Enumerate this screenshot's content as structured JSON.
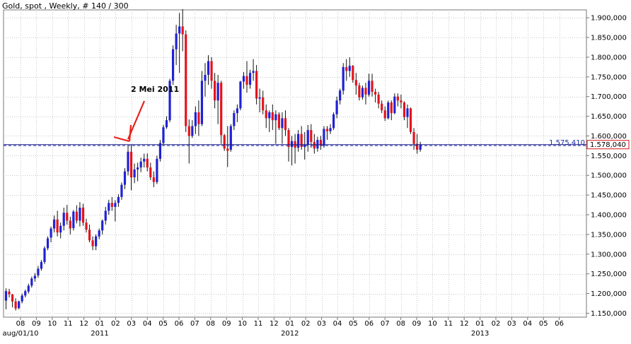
{
  "title": "Gold, spot , Weekly, # 140 / 300",
  "colors": {
    "up": "#1f22d6",
    "down": "#e3141c",
    "grid": "#c8c8c8",
    "ref_line": "#2030a0",
    "badge": "#d81010",
    "annot": "#e8201a",
    "blue_label": "#1a2ea8"
  },
  "chart_data": {
    "type": "candlestick",
    "ylim": [
      1140,
      1920
    ],
    "y_ticks": [
      "1.150,000",
      "1.200,000",
      "1.250,000",
      "1.300,000",
      "1.350,000",
      "1.400,000",
      "1.450,000",
      "1.500,000",
      "1.550,000",
      "1.600,000",
      "1.650,000",
      "1.700,000",
      "1.750,000",
      "1.800,000",
      "1.850,000",
      "1.900,000"
    ],
    "x_ticks": [
      "08",
      "09",
      "10",
      "11",
      "12",
      "01",
      "02",
      "03",
      "04",
      "05",
      "06",
      "07",
      "08",
      "09",
      "10",
      "11",
      "12",
      "01",
      "02",
      "03",
      "04",
      "05",
      "06",
      "07",
      "08",
      "09",
      "10",
      "11",
      "12",
      "01",
      "02",
      "03",
      "04",
      "05",
      "06"
    ],
    "year_labels": [
      {
        "text": "aug/01/10",
        "tick": 0
      },
      {
        "text": "2011",
        "tick": 5
      },
      {
        "text": "2012",
        "tick": 17
      },
      {
        "text": "2013",
        "tick": 29
      }
    ],
    "ref_line": {
      "value": 1575.41,
      "label": "1.575,410"
    },
    "last_price": {
      "value": 1578.04,
      "label": "1.578,040"
    },
    "annotation": {
      "text": "2 Mei 2011",
      "week": 38
    },
    "candles": [
      [
        1182,
        1213,
        1160,
        1206
      ],
      [
        1205,
        1212,
        1190,
        1198
      ],
      [
        1198,
        1199,
        1165,
        1180
      ],
      [
        1180,
        1188,
        1157,
        1162
      ],
      [
        1163,
        1182,
        1160,
        1180
      ],
      [
        1180,
        1200,
        1175,
        1195
      ],
      [
        1195,
        1210,
        1190,
        1206
      ],
      [
        1205,
        1225,
        1200,
        1220
      ],
      [
        1220,
        1243,
        1215,
        1238
      ],
      [
        1238,
        1252,
        1230,
        1245
      ],
      [
        1246,
        1270,
        1240,
        1263
      ],
      [
        1263,
        1285,
        1258,
        1280
      ],
      [
        1280,
        1320,
        1275,
        1315
      ],
      [
        1315,
        1345,
        1310,
        1340
      ],
      [
        1342,
        1370,
        1330,
        1365
      ],
      [
        1365,
        1398,
        1355,
        1388
      ],
      [
        1388,
        1410,
        1345,
        1355
      ],
      [
        1355,
        1380,
        1340,
        1372
      ],
      [
        1372,
        1418,
        1360,
        1405
      ],
      [
        1405,
        1425,
        1375,
        1385
      ],
      [
        1385,
        1395,
        1350,
        1365
      ],
      [
        1366,
        1412,
        1360,
        1408
      ],
      [
        1408,
        1424,
        1378,
        1385
      ],
      [
        1385,
        1432,
        1370,
        1418
      ],
      [
        1418,
        1428,
        1372,
        1380
      ],
      [
        1380,
        1390,
        1355,
        1362
      ],
      [
        1362,
        1375,
        1330,
        1335
      ],
      [
        1335,
        1345,
        1310,
        1320
      ],
      [
        1320,
        1350,
        1310,
        1345
      ],
      [
        1345,
        1365,
        1338,
        1360
      ],
      [
        1360,
        1388,
        1350,
        1385
      ],
      [
        1385,
        1420,
        1375,
        1410
      ],
      [
        1410,
        1438,
        1400,
        1430
      ],
      [
        1430,
        1445,
        1410,
        1420
      ],
      [
        1420,
        1437,
        1383,
        1430
      ],
      [
        1430,
        1452,
        1420,
        1445
      ],
      [
        1445,
        1482,
        1438,
        1476
      ],
      [
        1476,
        1518,
        1465,
        1510
      ],
      [
        1510,
        1575,
        1500,
        1560
      ],
      [
        1560,
        1578,
        1462,
        1495
      ],
      [
        1495,
        1530,
        1480,
        1515
      ],
      [
        1515,
        1532,
        1485,
        1520
      ],
      [
        1520,
        1545,
        1508,
        1535
      ],
      [
        1535,
        1555,
        1520,
        1542
      ],
      [
        1542,
        1556,
        1510,
        1520
      ],
      [
        1520,
        1532,
        1488,
        1495
      ],
      [
        1495,
        1510,
        1470,
        1483
      ],
      [
        1483,
        1550,
        1478,
        1542
      ],
      [
        1542,
        1590,
        1535,
        1582
      ],
      [
        1582,
        1628,
        1578,
        1622
      ],
      [
        1622,
        1650,
        1618,
        1640
      ],
      [
        1640,
        1745,
        1635,
        1740
      ],
      [
        1740,
        1830,
        1730,
        1820
      ],
      [
        1820,
        1882,
        1780,
        1860
      ],
      [
        1860,
        1912,
        1760,
        1878
      ],
      [
        1878,
        1922,
        1815,
        1858
      ],
      [
        1858,
        1868,
        1610,
        1625
      ],
      [
        1625,
        1642,
        1530,
        1600
      ],
      [
        1600,
        1640,
        1595,
        1625
      ],
      [
        1625,
        1675,
        1605,
        1660
      ],
      [
        1660,
        1690,
        1600,
        1630
      ],
      [
        1630,
        1765,
        1625,
        1740
      ],
      [
        1740,
        1785,
        1700,
        1755
      ],
      [
        1755,
        1805,
        1730,
        1790
      ],
      [
        1790,
        1800,
        1720,
        1740
      ],
      [
        1740,
        1760,
        1670,
        1690
      ],
      [
        1690,
        1755,
        1630,
        1735
      ],
      [
        1735,
        1740,
        1580,
        1602
      ],
      [
        1602,
        1605,
        1562,
        1568
      ],
      [
        1568,
        1625,
        1521,
        1562
      ],
      [
        1565,
        1630,
        1560,
        1625
      ],
      [
        1625,
        1665,
        1615,
        1658
      ],
      [
        1658,
        1680,
        1635,
        1670
      ],
      [
        1670,
        1740,
        1665,
        1738
      ],
      [
        1738,
        1762,
        1720,
        1752
      ],
      [
        1752,
        1790,
        1710,
        1730
      ],
      [
        1730,
        1768,
        1720,
        1760
      ],
      [
        1760,
        1795,
        1740,
        1765
      ],
      [
        1765,
        1780,
        1680,
        1695
      ],
      [
        1695,
        1720,
        1660,
        1698
      ],
      [
        1698,
        1715,
        1655,
        1665
      ],
      [
        1665,
        1680,
        1620,
        1645
      ],
      [
        1645,
        1665,
        1610,
        1660
      ],
      [
        1660,
        1680,
        1615,
        1640
      ],
      [
        1640,
        1665,
        1580,
        1655
      ],
      [
        1655,
        1660,
        1615,
        1620
      ],
      [
        1620,
        1660,
        1580,
        1645
      ],
      [
        1645,
        1665,
        1600,
        1615
      ],
      [
        1615,
        1620,
        1535,
        1572
      ],
      [
        1572,
        1600,
        1525,
        1587
      ],
      [
        1587,
        1605,
        1530,
        1570
      ],
      [
        1570,
        1615,
        1560,
        1605
      ],
      [
        1605,
        1625,
        1565,
        1572
      ],
      [
        1572,
        1610,
        1540,
        1578
      ],
      [
        1578,
        1628,
        1560,
        1615
      ],
      [
        1615,
        1630,
        1570,
        1585
      ],
      [
        1585,
        1605,
        1555,
        1568
      ],
      [
        1568,
        1598,
        1560,
        1590
      ],
      [
        1590,
        1600,
        1565,
        1575
      ],
      [
        1575,
        1625,
        1570,
        1618
      ],
      [
        1618,
        1625,
        1590,
        1612
      ],
      [
        1612,
        1630,
        1605,
        1620
      ],
      [
        1620,
        1660,
        1615,
        1655
      ],
      [
        1655,
        1700,
        1645,
        1690
      ],
      [
        1690,
        1720,
        1680,
        1715
      ],
      [
        1715,
        1785,
        1705,
        1775
      ],
      [
        1775,
        1795,
        1740,
        1765
      ],
      [
        1765,
        1800,
        1750,
        1778
      ],
      [
        1778,
        1780,
        1735,
        1742
      ],
      [
        1742,
        1760,
        1705,
        1728
      ],
      [
        1728,
        1735,
        1690,
        1698
      ],
      [
        1698,
        1728,
        1692,
        1722
      ],
      [
        1722,
        1735,
        1680,
        1705
      ],
      [
        1705,
        1758,
        1700,
        1740
      ],
      [
        1740,
        1758,
        1700,
        1712
      ],
      [
        1712,
        1720,
        1685,
        1705
      ],
      [
        1705,
        1712,
        1670,
        1682
      ],
      [
        1682,
        1690,
        1658,
        1665
      ],
      [
        1665,
        1675,
        1638,
        1645
      ],
      [
        1645,
        1690,
        1642,
        1685
      ],
      [
        1685,
        1690,
        1640,
        1658
      ],
      [
        1658,
        1708,
        1655,
        1700
      ],
      [
        1700,
        1708,
        1675,
        1690
      ],
      [
        1690,
        1705,
        1670,
        1685
      ],
      [
        1685,
        1688,
        1640,
        1648
      ],
      [
        1648,
        1680,
        1620,
        1670
      ],
      [
        1670,
        1672,
        1605,
        1610
      ],
      [
        1610,
        1620,
        1565,
        1580
      ],
      [
        1580,
        1605,
        1555,
        1565
      ],
      [
        1565,
        1585,
        1560,
        1578
      ]
    ]
  }
}
